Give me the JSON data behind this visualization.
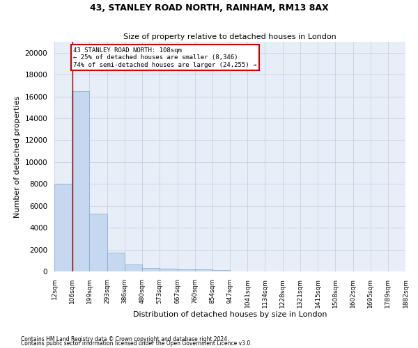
{
  "title": "43, STANLEY ROAD NORTH, RAINHAM, RM13 8AX",
  "subtitle": "Size of property relative to detached houses in London",
  "xlabel": "Distribution of detached houses by size in London",
  "ylabel": "Number of detached properties",
  "bar_color": "#c5d8f0",
  "bar_edge_color": "#7aaacc",
  "background_color": "#e8eef8",
  "grid_color": "#c8d0e0",
  "annotation_box_color": "#cc0000",
  "property_line_color": "#aa0000",
  "property_size": 108,
  "annotation_line1": "43 STANLEY ROAD NORTH: 108sqm",
  "annotation_line2": "← 25% of detached houses are smaller (8,346)",
  "annotation_line3": "74% of semi-detached houses are larger (24,255) →",
  "bin_edges": [
    12,
    106,
    199,
    293,
    386,
    480,
    573,
    667,
    760,
    854,
    947,
    1041,
    1134,
    1228,
    1321,
    1415,
    1508,
    1602,
    1695,
    1789,
    1882
  ],
  "bar_heights": [
    8050,
    16500,
    5300,
    1750,
    650,
    350,
    270,
    200,
    165,
    140,
    0,
    0,
    0,
    0,
    0,
    0,
    0,
    0,
    0,
    0
  ],
  "ylim": [
    0,
    21000
  ],
  "yticks": [
    0,
    2000,
    4000,
    6000,
    8000,
    10000,
    12000,
    14000,
    16000,
    18000,
    20000
  ],
  "tick_labels": [
    "12sqm",
    "106sqm",
    "199sqm",
    "293sqm",
    "386sqm",
    "480sqm",
    "573sqm",
    "667sqm",
    "760sqm",
    "854sqm",
    "947sqm",
    "1041sqm",
    "1134sqm",
    "1228sqm",
    "1321sqm",
    "1415sqm",
    "1508sqm",
    "1602sqm",
    "1695sqm",
    "1789sqm",
    "1882sqm"
  ],
  "footnote1": "Contains HM Land Registry data © Crown copyright and database right 2024.",
  "footnote2": "Contains public sector information licensed under the Open Government Licence v3.0."
}
